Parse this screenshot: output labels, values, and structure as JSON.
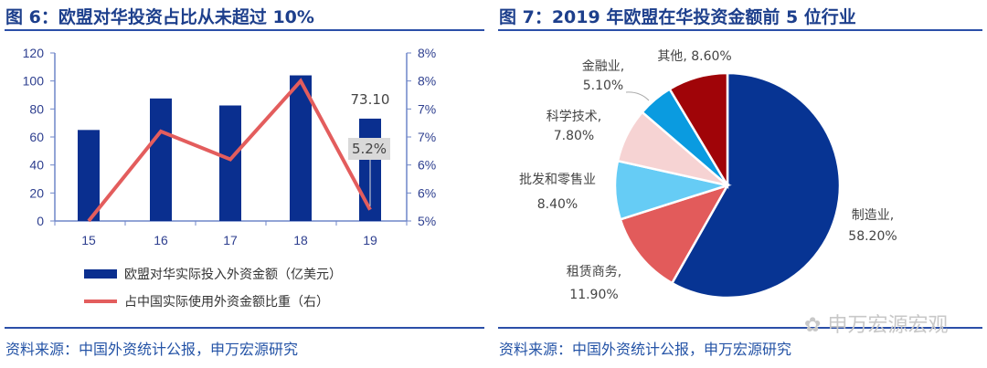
{
  "left": {
    "title": "图 6：欧盟对华投资占比从未超过 10%",
    "source": "资料来源：中国外资统计公报，申万宏源研究"
  },
  "right": {
    "title": "图 7：2019 年欧盟在华投资金额前 5 位行业",
    "source": "资料来源：中国外资统计公报，申万宏源研究"
  },
  "watermark": "申万宏源宏观",
  "chart_data": [
    {
      "type": "bar+line",
      "categories": [
        "15",
        "16",
        "17",
        "18",
        "19"
      ],
      "series": [
        {
          "name": "欧盟对华实际投入外资金额（亿美元）",
          "type": "bar",
          "axis": "left",
          "values": [
            65,
            87.5,
            82.5,
            104,
            73.1
          ],
          "color": "#0a2f8f"
        },
        {
          "name": "占中国实际使用外资金额比重（右）",
          "type": "line",
          "axis": "right",
          "values": [
            5.0,
            6.6,
            6.1,
            7.5,
            5.2
          ],
          "color": "#e35d5d"
        }
      ],
      "data_labels": {
        "bar_19": "73.10",
        "line_19": "5.2%"
      },
      "ylim_left": [
        0,
        120
      ],
      "yticks_left": [
        "0",
        "20",
        "40",
        "60",
        "80",
        "100",
        "120"
      ],
      "ylim_right": [
        5,
        8
      ],
      "yticks_right": [
        "5%",
        "6%",
        "6%",
        "7%",
        "7%",
        "8%",
        "8%"
      ],
      "legend": "bottom",
      "grid": false
    },
    {
      "type": "pie",
      "start": "top",
      "direction": "clockwise",
      "slices": [
        {
          "label": "制造业",
          "value": 58.2,
          "text": "58.20%",
          "color": "#073493"
        },
        {
          "label": "租赁商务",
          "value": 11.9,
          "text": "11.90%",
          "color": "#e25b5b"
        },
        {
          "label": "批发和零售业",
          "value": 8.4,
          "text": "8.40%",
          "color": "#66ccf5"
        },
        {
          "label": "科学技术",
          "value": 7.8,
          "text": "7.80%",
          "color": "#f6d3d3"
        },
        {
          "label": "金融业",
          "value": 5.1,
          "text": "5.10%",
          "color": "#0a9be0"
        },
        {
          "label": "其他",
          "value": 8.6,
          "text": "8.60%",
          "color": "#a00408"
        }
      ]
    }
  ]
}
